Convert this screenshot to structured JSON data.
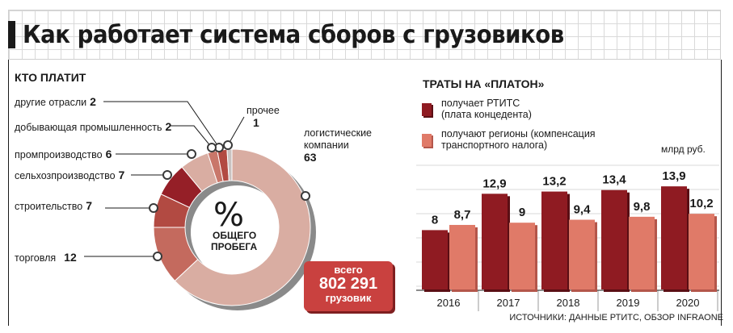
{
  "title": "Как работает система сборов с грузовиков",
  "left_panel": {
    "heading": "КТО ПЛАТИТ",
    "center_symbol": "%",
    "center_caption_1": "ОБЩЕГО",
    "center_caption_2": "ПРОБЕГА",
    "badge": {
      "line1": "всего",
      "line2": "802 291",
      "line3": "грузовик"
    }
  },
  "right_panel": {
    "heading": "ТРАТЫ НА «ПЛАТОН»",
    "legend_1_line1": "получает РТИТС",
    "legend_1_line2": "(плата концедента)",
    "legend_2_line1": "получают регионы (компенсация",
    "legend_2_line2": "транспортного налога)",
    "unit": "млрд руб."
  },
  "source": "ИСТОЧНИКИ: ДАННЫЕ РТИТС, ОБЗОР INFRAONE",
  "colors": {
    "dark_red": "#8f1b22",
    "light_red": "#e07a68",
    "ring_pale": "#d9ada2",
    "ring_mid": "#c46a5e",
    "ring_grey": "#c9c2c0",
    "badge": "#c9413f"
  },
  "chart_data": [
    {
      "type": "pie",
      "title": "КТО ПЛАТИТ",
      "unit": "%",
      "slices": [
        {
          "label": "логистические компании",
          "value": 63
        },
        {
          "label": "торговля",
          "value": 12
        },
        {
          "label": "строительство",
          "value": 7
        },
        {
          "label": "сельхозпроизводство",
          "value": 7
        },
        {
          "label": "промпроизводство",
          "value": 6
        },
        {
          "label": "другие отрасли",
          "value": 2
        },
        {
          "label": "добывающая промышленность",
          "value": 2
        },
        {
          "label": "прочее",
          "value": 1
        }
      ]
    },
    {
      "type": "bar",
      "title": "ТРАТЫ НА «ПЛАТОН»",
      "categories": [
        "2016",
        "2017",
        "2018",
        "2019",
        "2020"
      ],
      "series": [
        {
          "name": "получает РТИТС (плата концедента)",
          "values": [
            8,
            12.9,
            13.2,
            13.4,
            13.9
          ],
          "labels": [
            "8",
            "12,9",
            "13,2",
            "13,4",
            "13,9"
          ]
        },
        {
          "name": "получают регионы (компенсация транспортного налога)",
          "values": [
            8.7,
            9,
            9.4,
            9.8,
            10.2
          ],
          "labels": [
            "8,7",
            "9",
            "9,4",
            "9,8",
            "10,2"
          ]
        }
      ],
      "ylabel": "млрд руб."
    }
  ]
}
